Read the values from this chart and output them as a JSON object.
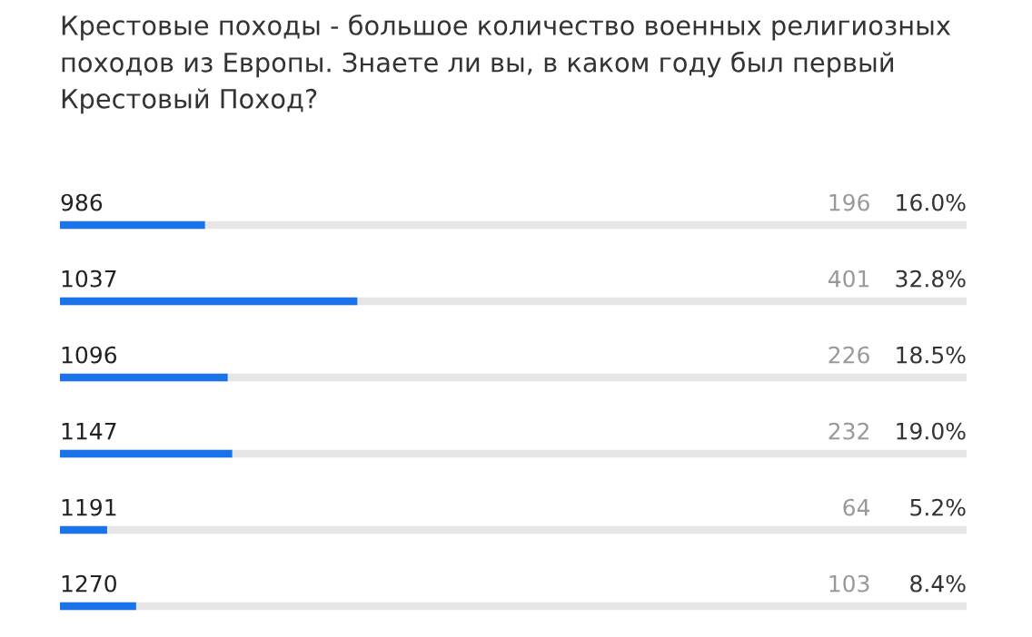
{
  "chart_data": {
    "type": "bar",
    "orientation": "horizontal",
    "title": "Крестовые походы - большое количество военных религиозных походов из Европы. Знаете ли вы, в каком году был первый Крестовый Поход?",
    "categories": [
      "986",
      "1037",
      "1096",
      "1147",
      "1191",
      "1270"
    ],
    "values": [
      16.0,
      32.8,
      18.5,
      19.0,
      5.2,
      8.4
    ],
    "value_labels": [
      "16.0%",
      "32.8%",
      "18.5%",
      "19.0%",
      "5.2%",
      "8.4%"
    ],
    "color": "#1a73e8",
    "xlim": [
      0,
      100
    ],
    "annotations": [
      "196",
      "401",
      "226",
      "232",
      "64",
      "103"
    ]
  }
}
